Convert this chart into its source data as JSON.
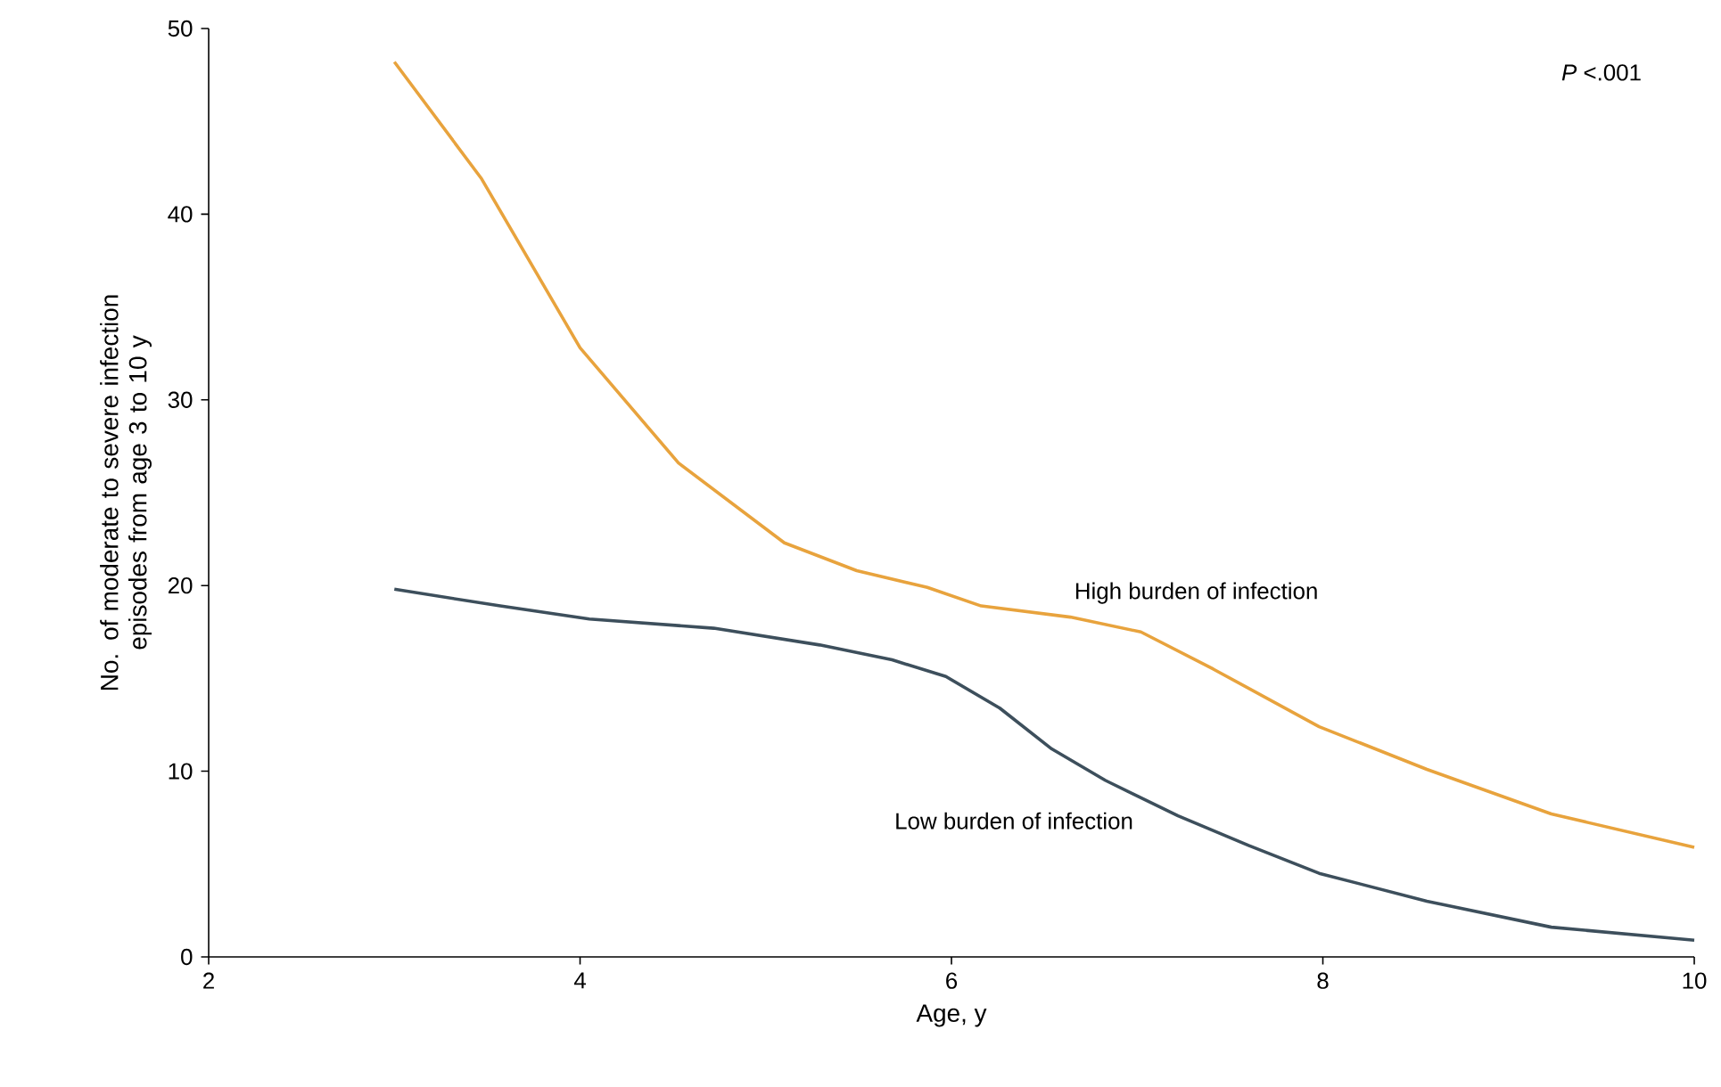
{
  "chart_data": {
    "type": "line",
    "xlabel": "Age, y",
    "ylabel": "No. of moderate to severe infection episodes from age 3 to 10 y",
    "xlim": [
      2,
      10
    ],
    "ylim": [
      0,
      50
    ],
    "xticks": [
      2,
      4,
      6,
      8,
      10
    ],
    "yticks": [
      0,
      10,
      20,
      30,
      40,
      50
    ],
    "annotations": [
      "*P* <.001"
    ],
    "series": [
      {
        "name": "High burden of infection",
        "color": "#e8a33d",
        "x": [
          3.0,
          3.47,
          4.0,
          4.53,
          5.1,
          5.49,
          5.87,
          6.16,
          6.64,
          7.02,
          7.41,
          7.98,
          8.56,
          9.23,
          10.0
        ],
        "values": [
          48.2,
          41.9,
          32.8,
          26.6,
          22.3,
          20.8,
          19.9,
          18.9,
          18.3,
          17.5,
          15.5,
          12.4,
          10.1,
          7.7,
          5.9
        ]
      },
      {
        "name": "Low burden of infection",
        "color": "#3d4f5c",
        "x": [
          3.0,
          3.57,
          4.05,
          4.72,
          5.29,
          5.68,
          5.97,
          6.26,
          6.54,
          6.83,
          7.22,
          7.6,
          7.98,
          8.56,
          9.23,
          10.0
        ],
        "values": [
          19.8,
          18.9,
          18.2,
          17.7,
          16.8,
          16.0,
          15.1,
          13.4,
          11.2,
          9.5,
          7.6,
          6.0,
          4.5,
          3.0,
          1.6,
          0.9
        ]
      }
    ]
  }
}
